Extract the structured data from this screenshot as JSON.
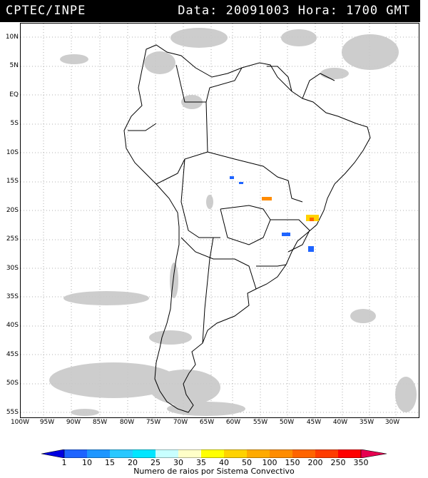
{
  "header": {
    "left": "CPTEC/INPE",
    "right": "Data: 20091003 Hora: 1700 GMT"
  },
  "axes": {
    "lat_labels": [
      "10N",
      "5N",
      "EQ",
      "5S",
      "10S",
      "15S",
      "20S",
      "25S",
      "30S",
      "35S",
      "40S",
      "45S",
      "50S",
      "55S"
    ],
    "lon_labels": [
      "100W",
      "95W",
      "90W",
      "85W",
      "80W",
      "75W",
      "70W",
      "65W",
      "60W",
      "55W",
      "50W",
      "45W",
      "40W",
      "35W",
      "30W"
    ]
  },
  "colorbar": {
    "ticks": [
      "1",
      "10",
      "15",
      "20",
      "25",
      "30",
      "35",
      "40",
      "50",
      "100",
      "150",
      "200",
      "250",
      "350"
    ],
    "colors": [
      "#0000e0",
      "#1e64ff",
      "#1e96ff",
      "#28c8ff",
      "#00e6ff",
      "#c8ffff",
      "#ffffc8",
      "#ffff00",
      "#ffd200",
      "#ffaa00",
      "#ff8c00",
      "#ff6400",
      "#ff3c00",
      "#ff0000",
      "#e60050"
    ],
    "caption": "Numero de raios por Sistema Convectivo"
  },
  "map": {
    "cloud_color": "#c8c8c8",
    "coast_color": "#000000",
    "lat_range": [
      -56,
      13
    ],
    "lon_range": [
      -100,
      -27
    ]
  }
}
